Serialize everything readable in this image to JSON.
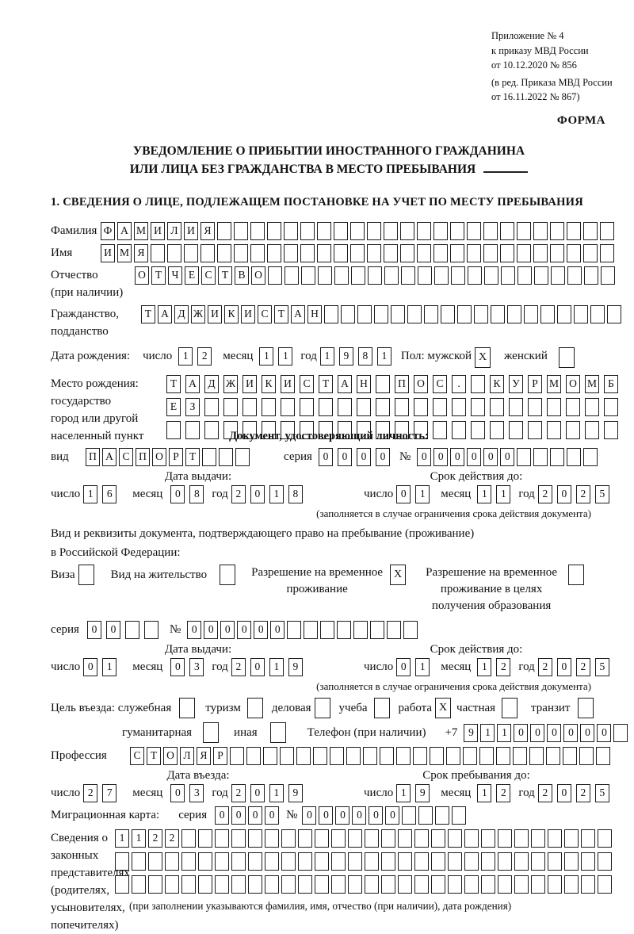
{
  "header": {
    "line1": "Приложение № 4",
    "line2": "к приказу МВД России",
    "line3": "от 10.12.2020 № 856",
    "line4": "(в ред. Приказа МВД России",
    "line5": "от 16.11.2022 № 867)",
    "forma": "ФОРМА"
  },
  "title": {
    "line1": "УВЕДОМЛЕНИЕ О ПРИБЫТИИ ИНОСТРАННОГО ГРАЖДАНИНА",
    "line2": "ИЛИ ЛИЦА БЕЗ ГРАЖДАНСТВА В МЕСТО ПРЕБЫВАНИЯ"
  },
  "section1": {
    "heading": "1. СВЕДЕНИЯ О ЛИЦЕ, ПОДЛЕЖАЩЕМ ПОСТАНОВКЕ НА УЧЕТ ПО МЕСТУ ПРЕБЫВАНИЯ"
  },
  "labels": {
    "surname": "Фамилия",
    "name": "Имя",
    "patronymic1": "Отчество",
    "patronymic2": "(при наличии)",
    "citizenship1": "Гражданство,",
    "citizenship2": "подданство",
    "birth_date": "Дата рождения:",
    "day": "число",
    "month": "месяц",
    "year": "год",
    "sex_male": "Пол: мужской",
    "sex_female": "женский",
    "birthplace1": "Место рождения:",
    "birthplace2": "государство",
    "birthplace3": "город или другой",
    "birthplace4": "населенный пункт",
    "id_doc_heading": "Документ, удостоверяющий личность:",
    "doc_type": "вид",
    "series": "серия",
    "number": "№",
    "issue_date": "Дата выдачи:",
    "valid_until": "Срок действия до:",
    "valid_note": "(заполняется в случае ограничения срока действия документа)",
    "permit_line1": "Вид и реквизиты документа, подтверждающего право на пребывание (проживание)",
    "permit_line2": "в Российской Федерации:",
    "visa": "Виза",
    "residence_permit": "Вид на жительство",
    "temp_permit": "Разрешение на временное проживание",
    "edu_permit": "Разрешение на временное проживание в целях получения образования",
    "purpose": "Цель въезда: служебная",
    "tourism": "туризм",
    "business": "деловая",
    "study": "учеба",
    "work": "работа",
    "private": "частная",
    "transit": "транзит",
    "humanitarian": "гуманитарная",
    "other": "иная",
    "phone": "Телефон (при наличии)",
    "plus7": "+7",
    "profession": "Профессия",
    "entry_date": "Дата въезда:",
    "stay_until": "Срок пребывания до:",
    "migration_card": "Миграционная карта:",
    "representatives": [
      "Сведения о",
      "законных",
      "представителях",
      "(родителях,",
      "усыновителях,",
      "попечителях)"
    ],
    "rep_note": "(при заполнении указываются фамилия, имя, отчество (при наличии), дата рождения)"
  },
  "rows": {
    "surname": {
      "text": "ФАМИЛИЯ",
      "len": 31
    },
    "name": {
      "text": "ИМЯ",
      "len": 31
    },
    "patronymic": {
      "text": "ОТЧЕСТВО",
      "len": 29
    },
    "citizenship": {
      "text": "ТАДЖИКИСТАН",
      "len": 29
    },
    "birth_day": {
      "text": "12",
      "len": 2,
      "sp": true
    },
    "birth_month": {
      "text": "11",
      "len": 2,
      "sp": true
    },
    "birth_year": {
      "text": "1981",
      "len": 4,
      "sp": true
    },
    "sex_male_cb": {
      "text": "X",
      "len": 1,
      "big": true
    },
    "sex_female_cb": {
      "text": "",
      "len": 1,
      "big": true
    },
    "birthplace1": {
      "text": "ТАДЖИКИСТАН ПОС. КУРМОМБ",
      "len": 24,
      "sp": true
    },
    "birthplace2": {
      "text": "ЕЗ",
      "len": 24,
      "sp": true
    },
    "birthplace3": {
      "text": "",
      "len": 24,
      "sp": true
    },
    "doc_type": {
      "text": "ПАСПОРТ",
      "len": 10
    },
    "doc_series": {
      "text": "0000",
      "len": 4,
      "sp": true
    },
    "doc_number": {
      "text": "000000",
      "len": 11
    },
    "doc_issue_day": {
      "text": "16",
      "len": 2,
      "sp": true
    },
    "doc_issue_month": {
      "text": "08",
      "len": 2,
      "sp": true
    },
    "doc_issue_year": {
      "text": "2018",
      "len": 4,
      "sp": true
    },
    "doc_exp_day": {
      "text": "01",
      "len": 2,
      "sp": true
    },
    "doc_exp_month": {
      "text": "11",
      "len": 2,
      "sp": true
    },
    "doc_exp_year": {
      "text": "2025",
      "len": 4,
      "sp": true
    },
    "visa_cb": {
      "text": "",
      "len": 1,
      "big": true
    },
    "residence_cb": {
      "text": "",
      "len": 1,
      "big": true
    },
    "temp_permit_cb": {
      "text": "X",
      "len": 1,
      "big": true
    },
    "edu_permit_cb": {
      "text": "",
      "len": 1,
      "big": true
    },
    "permit_series": {
      "text": "00",
      "len": 4,
      "sp": true
    },
    "permit_number": {
      "text": "000000",
      "len": 14
    },
    "permit_issue_day": {
      "text": "01",
      "len": 2,
      "sp": true
    },
    "permit_issue_month": {
      "text": "03",
      "len": 2,
      "sp": true
    },
    "permit_issue_year": {
      "text": "2019",
      "len": 4,
      "sp": true
    },
    "permit_exp_day": {
      "text": "01",
      "len": 2,
      "sp": true
    },
    "permit_exp_month": {
      "text": "12",
      "len": 2,
      "sp": true
    },
    "permit_exp_year": {
      "text": "2025",
      "len": 4,
      "sp": true
    },
    "purpose_official_cb": {
      "text": "",
      "len": 1,
      "big": true
    },
    "purpose_tourism_cb": {
      "text": "",
      "len": 1,
      "big": true
    },
    "purpose_business_cb": {
      "text": "",
      "len": 1,
      "big": true
    },
    "purpose_study_cb": {
      "text": "",
      "len": 1,
      "big": true
    },
    "purpose_work_cb": {
      "text": "X",
      "len": 1,
      "big": true
    },
    "purpose_private_cb": {
      "text": "",
      "len": 1,
      "big": true
    },
    "purpose_transit_cb": {
      "text": "",
      "len": 1,
      "big": true
    },
    "purpose_humanitarian_cb": {
      "text": "",
      "len": 1,
      "big": true
    },
    "purpose_other_cb": {
      "text": "",
      "len": 1,
      "big": true
    },
    "phone": {
      "text": "911000000",
      "len": 10
    },
    "profession": {
      "text": "СТОЛЯР",
      "len": 29
    },
    "entry_day": {
      "text": "27",
      "len": 2,
      "sp": true
    },
    "entry_month": {
      "text": "03",
      "len": 2,
      "sp": true
    },
    "entry_year": {
      "text": "2019",
      "len": 4,
      "sp": true
    },
    "stay_day": {
      "text": "19",
      "len": 2,
      "sp": true
    },
    "stay_month": {
      "text": "12",
      "len": 2,
      "sp": true
    },
    "stay_year": {
      "text": "2025",
      "len": 4,
      "sp": true
    },
    "migr_series": {
      "text": "0000",
      "len": 4
    },
    "migr_number": {
      "text": "000000",
      "len": 10
    },
    "rep1": {
      "text": "1122",
      "len": 30
    },
    "rep2": {
      "text": "",
      "len": 30
    },
    "rep3": {
      "text": "",
      "len": 30
    }
  }
}
